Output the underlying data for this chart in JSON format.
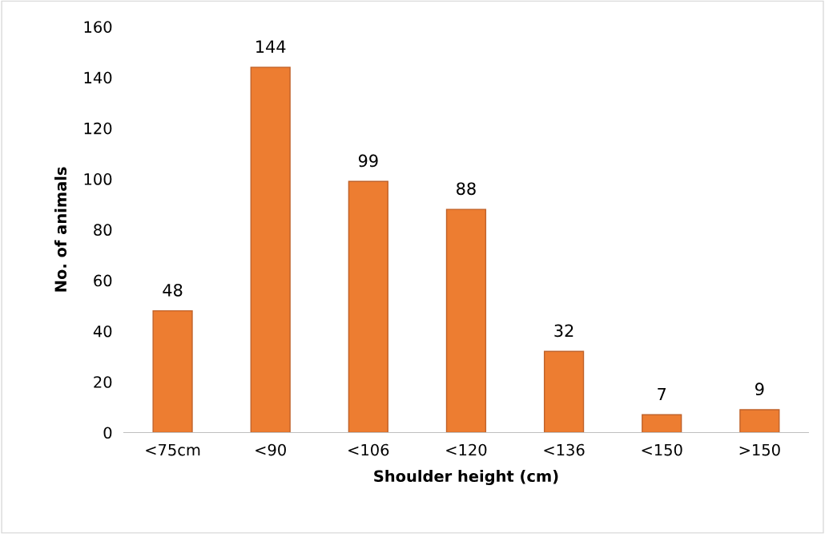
{
  "chart_data": {
    "type": "bar",
    "xlabel": "Shoulder height (cm)",
    "ylabel": "No. of animals",
    "categories": [
      "<75cm",
      "<90",
      "<106",
      "<120",
      "<136",
      "<150",
      ">150"
    ],
    "values": [
      48,
      144,
      99,
      88,
      32,
      7,
      9
    ],
    "color": "#ed7d31",
    "ylim": [
      0,
      160
    ],
    "yticks": [
      0,
      20,
      40,
      60,
      80,
      100,
      120,
      140,
      160
    ],
    "grid": false,
    "data_labels": true
  }
}
